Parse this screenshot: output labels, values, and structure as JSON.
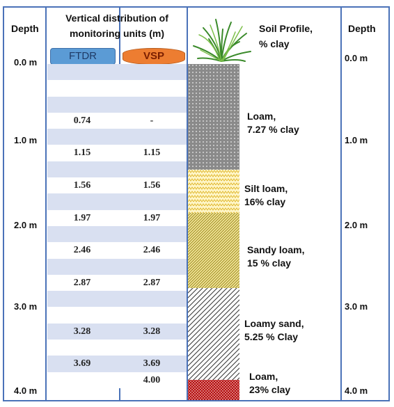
{
  "headers": {
    "depth_left": "Depth",
    "depth_right": "Depth",
    "units_title_line1": "Vertical distribution of",
    "units_title_line2": "monitoring units (m)",
    "soil_title_line1": "Soil Profile,",
    "soil_title_line2": "% clay"
  },
  "depth_labels_left": [
    "0.0 m",
    "1.0 m",
    "2.0 m",
    "3.0 m",
    "4.0 m"
  ],
  "depth_labels_right": [
    "0.0 m",
    "1.0 m",
    "2.0 m",
    "3.0 m",
    "4.0 m"
  ],
  "units": {
    "ftdr_label": "FTDR",
    "vsp_label": "VSP",
    "ftdr_color": "#5b9bd5",
    "vsp_color": "#ed7d31"
  },
  "rows": [
    {
      "ftdr": "",
      "vsp": ""
    },
    {
      "ftdr": "",
      "vsp": ""
    },
    {
      "ftdr": "",
      "vsp": ""
    },
    {
      "ftdr": "0.74",
      "vsp": "-"
    },
    {
      "ftdr": "",
      "vsp": ""
    },
    {
      "ftdr": "1.15",
      "vsp": "1.15"
    },
    {
      "ftdr": "",
      "vsp": ""
    },
    {
      "ftdr": "1.56",
      "vsp": "1.56"
    },
    {
      "ftdr": "",
      "vsp": ""
    },
    {
      "ftdr": "1.97",
      "vsp": "1.97"
    },
    {
      "ftdr": "",
      "vsp": ""
    },
    {
      "ftdr": "2.46",
      "vsp": "2.46"
    },
    {
      "ftdr": "",
      "vsp": ""
    },
    {
      "ftdr": "2.87",
      "vsp": "2.87"
    },
    {
      "ftdr": "",
      "vsp": ""
    },
    {
      "ftdr": "",
      "vsp": ""
    },
    {
      "ftdr": "3.28",
      "vsp": "3.28"
    },
    {
      "ftdr": "",
      "vsp": ""
    },
    {
      "ftdr": "3.69",
      "vsp": "3.69"
    },
    {
      "ftdr": "",
      "vsp": "4.00"
    }
  ],
  "soil_layers": [
    {
      "name": "Loam,",
      "clay": "7.27 % clay",
      "pattern": "dots",
      "color": "#7f7f7f"
    },
    {
      "name": "Silt loam,",
      "clay": "16% clay",
      "pattern": "zigzag",
      "color": "#e8d36a"
    },
    {
      "name": "Sandy loam,",
      "clay": "15 % clay",
      "pattern": "diag",
      "color": "#d4c24a"
    },
    {
      "name": "Loamy sand,",
      "clay": "5.25 % Clay",
      "pattern": "diag-sparse",
      "color": "#555555"
    },
    {
      "name": "Loam,",
      "clay": "23% clay",
      "pattern": "crosshatch",
      "color": "#c00000"
    }
  ]
}
